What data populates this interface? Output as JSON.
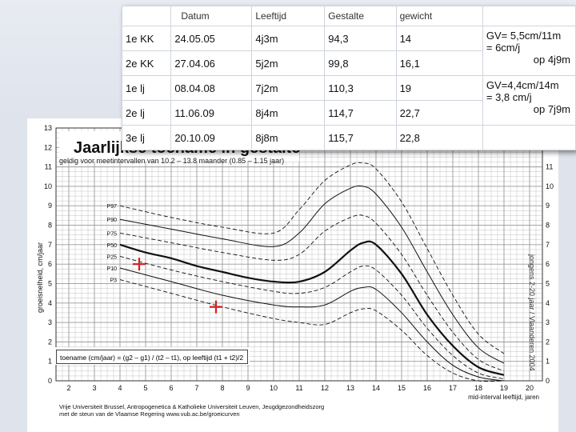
{
  "table": {
    "headers": [
      "",
      "Datum",
      "Leeftijd",
      "Gestalte",
      "gewicht",
      ""
    ],
    "rows": [
      {
        "label": "1e KK",
        "datum": "24.05.05",
        "leeftijd": "4j3m",
        "gestalte": "94,3",
        "gewicht": "14"
      },
      {
        "label": "2e KK",
        "datum": "27.04.06",
        "leeftijd": "5j2m",
        "gestalte": "99,8",
        "gewicht": "16,1"
      },
      {
        "label": "1e lj",
        "datum": "08.04.08",
        "leeftijd": "7j2m",
        "gestalte": "110,3",
        "gewicht": "19"
      },
      {
        "label": "2e lj",
        "datum": "11.06.09",
        "leeftijd": "8j4m",
        "gestalte": "114,7",
        "gewicht": "22,7"
      },
      {
        "label": "3e lj",
        "datum": "20.10.09",
        "leeftijd": "8j8m",
        "gestalte": "115,7",
        "gewicht": "22,8"
      }
    ],
    "notes": [
      {
        "main": "GV= 5,5cm/11m\n= 6cm/j",
        "right": "op 4j9m"
      },
      {
        "main": "GV=4,4cm/14m\n= 3,8 cm/j",
        "right": "op 7j9m"
      }
    ]
  },
  "chart": {
    "title": "Jaarlijkse toename in gestalte",
    "subtitle": "geldig voor meetintervallen van 10.2 – 13.8 maander (0.85 – 1.15 jaar)",
    "ylabel": "groeisnelheid, cm/jaar",
    "xlabel": "mid-interval leeftijd, jaren",
    "formula": "toename (cm/jaar) = (g2 – g1) / (t2 – t1), op leeftijd (t1 + t2)/2",
    "credits": [
      "Vrije Universiteit Brussel, Antropogenetica & Katholieke Universiteit Leuven, Jeugdgezondheidszorg",
      "met de steun van de Vlaamse Regering                    www.vub.ac.be/groeicurven"
    ],
    "side_text": "jongens 2-20 jaar / Vlaanderen 2004",
    "percentile_labels": [
      "P97",
      "P90",
      "P75",
      "P50",
      "P25",
      "P10",
      "P3"
    ],
    "grid_color": "#9a9a9a",
    "curve_color": "#111111",
    "marker_color": "#d42020"
  },
  "chart_data": {
    "type": "line",
    "title": "Jaarlijkse toename in gestalte",
    "xlabel": "mid-interval leeftijd, jaren",
    "ylabel": "groeisnelheid, cm/jaar",
    "x_ticks": [
      2,
      3,
      4,
      5,
      6,
      7,
      8,
      9,
      10,
      11,
      12,
      13,
      14,
      15,
      16,
      17,
      18,
      19,
      20
    ],
    "y_ticks": [
      0,
      1,
      2,
      3,
      4,
      5,
      6,
      7,
      8,
      9,
      10,
      11,
      12,
      13
    ],
    "xlim": [
      1.5,
      20.5
    ],
    "ylim": [
      0,
      13
    ],
    "series": [
      {
        "name": "P97",
        "style": "dashed",
        "x": [
          4,
          6,
          8,
          10,
          11,
          12,
          13,
          13.5,
          14,
          15,
          16,
          17,
          18,
          19
        ],
        "y": [
          9.0,
          8.4,
          7.9,
          7.6,
          8.8,
          10.3,
          11.1,
          11.2,
          10.9,
          9.2,
          6.8,
          4.4,
          2.4,
          1.4
        ]
      },
      {
        "name": "P90",
        "style": "solid",
        "x": [
          4,
          6,
          8,
          10,
          11,
          12,
          13,
          13.5,
          14,
          15,
          16,
          17,
          18,
          19
        ],
        "y": [
          8.3,
          7.8,
          7.3,
          6.9,
          7.6,
          9.1,
          9.9,
          10.0,
          9.6,
          7.9,
          5.6,
          3.4,
          1.7,
          0.9
        ]
      },
      {
        "name": "P75",
        "style": "dashed",
        "x": [
          4,
          6,
          8,
          10,
          11,
          12,
          13,
          13.5,
          14,
          15,
          16,
          17,
          18,
          19
        ],
        "y": [
          7.6,
          7.1,
          6.6,
          6.2,
          6.5,
          7.7,
          8.4,
          8.5,
          8.1,
          6.5,
          4.4,
          2.5,
          1.1,
          0.5
        ]
      },
      {
        "name": "P50",
        "style": "bold",
        "x": [
          4,
          5,
          6,
          7,
          8,
          9,
          10,
          11,
          12,
          13,
          13.5,
          14,
          15,
          16,
          17,
          18,
          19
        ],
        "y": [
          7.0,
          6.6,
          6.3,
          5.9,
          5.6,
          5.3,
          5.1,
          5.1,
          5.6,
          6.7,
          7.1,
          7.0,
          5.5,
          3.4,
          1.8,
          0.7,
          0.3
        ]
      },
      {
        "name": "P25",
        "style": "dashed",
        "x": [
          4,
          6,
          8,
          10,
          11,
          12,
          13,
          13.5,
          14,
          15,
          16,
          17,
          18,
          19
        ],
        "y": [
          6.4,
          5.7,
          5.1,
          4.6,
          4.5,
          4.8,
          5.6,
          5.9,
          5.7,
          4.4,
          2.7,
          1.3,
          0.4,
          0.1
        ]
      },
      {
        "name": "P10",
        "style": "solid",
        "x": [
          4,
          6,
          8,
          10,
          11,
          12,
          13,
          13.5,
          14,
          15,
          16,
          17,
          18,
          19
        ],
        "y": [
          5.8,
          5.1,
          4.4,
          3.9,
          3.8,
          3.9,
          4.6,
          4.8,
          4.7,
          3.5,
          2.0,
          0.8,
          0.2,
          0.0
        ]
      },
      {
        "name": "P3",
        "style": "dashed",
        "x": [
          4,
          6,
          8,
          10,
          11,
          12,
          13,
          13.5,
          14,
          15,
          16,
          17,
          18,
          19
        ],
        "y": [
          5.2,
          4.5,
          3.8,
          3.2,
          3.0,
          2.9,
          3.5,
          3.7,
          3.6,
          2.6,
          1.3,
          0.4,
          0.0,
          0.0
        ]
      }
    ],
    "markers": [
      {
        "x": 4.75,
        "y": 6.0
      },
      {
        "x": 7.75,
        "y": 3.8
      }
    ],
    "grid": true
  }
}
